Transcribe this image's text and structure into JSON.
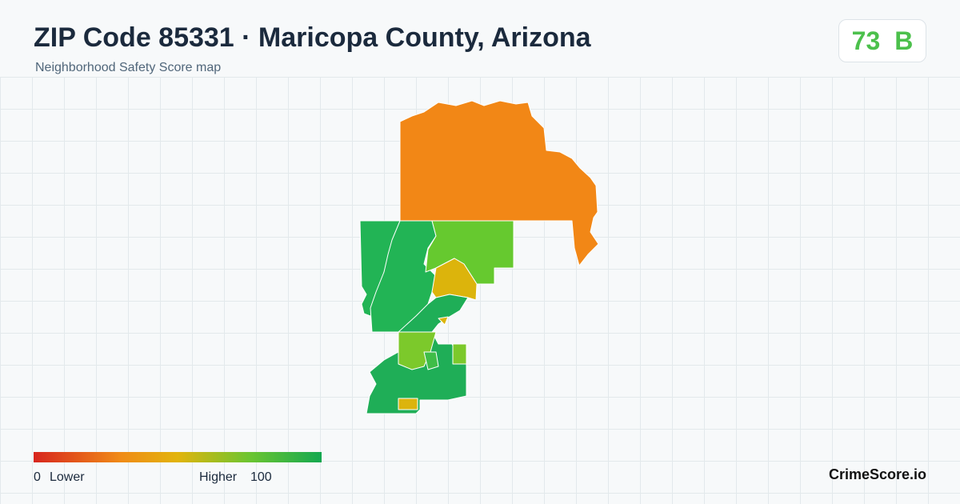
{
  "header": {
    "title": "ZIP Code 85331 · Maricopa County, Arizona",
    "subtitle": "Neighborhood Safety Score map"
  },
  "score": {
    "value": 73,
    "grade": "B"
  },
  "legend": {
    "min": 0,
    "min_label": "Lower",
    "max_label": "Higher",
    "max": 100
  },
  "brand": "CrimeScore.io"
}
